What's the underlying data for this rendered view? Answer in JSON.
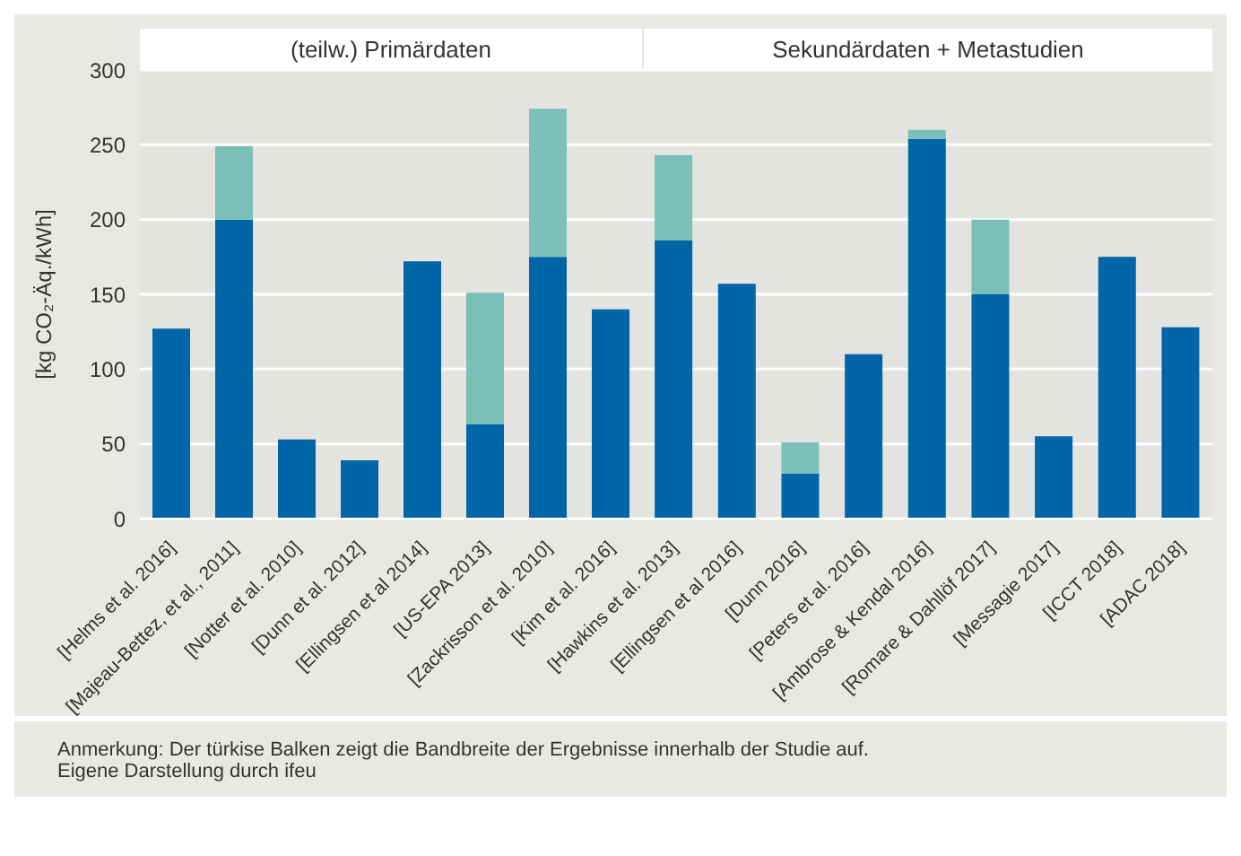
{
  "chart_data": [
    {
      "type": "bar",
      "title": "(teilw.) Primärdaten",
      "ylabel": "[kg CO₂-Äq./kWh]",
      "categories": [
        "[Helms et al. 2016]",
        "[Majeau-Bettez, et al., 2011]",
        "[Notter et al. 2010]",
        "[Dunn et al. 2012]",
        "[Ellingsen et al 2014]",
        "[US-EPA 2013]",
        "[Zackrisson et al. 2010]",
        "[Kim et al. 2016]"
      ],
      "series": [
        {
          "color": "#0066a8",
          "values": [
            127,
            200,
            53,
            39,
            172,
            63,
            175,
            140
          ]
        },
        {
          "color": "#7bbfb9",
          "values": [
            null,
            49,
            null,
            null,
            null,
            88,
            99,
            null
          ]
        }
      ],
      "stacked": true,
      "ylim": [
        0,
        300
      ],
      "yticks": [
        0,
        50,
        100,
        150,
        200,
        250,
        300
      ],
      "grid": "y",
      "annotations": [
        "Anmerkung: Der türkise Balken zeigt die Bandbreite der Ergebnisse innerhalb der Studie auf.",
        "Eigene Darstellung durch ifeu"
      ]
    },
    {
      "type": "bar",
      "title": "Sekundärdaten + Metastudien",
      "categories": [
        "[Hawkins et al. 2013]",
        "[Ellingsen et al 2016]",
        "[Dunn 2016]",
        "[Peters et al. 2016]",
        "[Ambrose & Kendal 2016]",
        "[Romare & Dahllöf 2017]",
        "[Messagie 2017]",
        "[ICCT 2018]",
        "[ADAC 2018]"
      ],
      "series": [
        {
          "color": "#0066a8",
          "values": [
            186,
            157,
            30,
            110,
            254,
            150,
            55,
            175,
            128
          ]
        },
        {
          "color": "#7bbfb9",
          "values": [
            57,
            null,
            21,
            null,
            6,
            50,
            null,
            null,
            null
          ]
        }
      ],
      "stacked": true,
      "ylim": [
        0,
        300
      ],
      "yticks": [
        0,
        50,
        100,
        150,
        200,
        250,
        300
      ],
      "grid": "y",
      "tick_labels": "x"
    }
  ]
}
